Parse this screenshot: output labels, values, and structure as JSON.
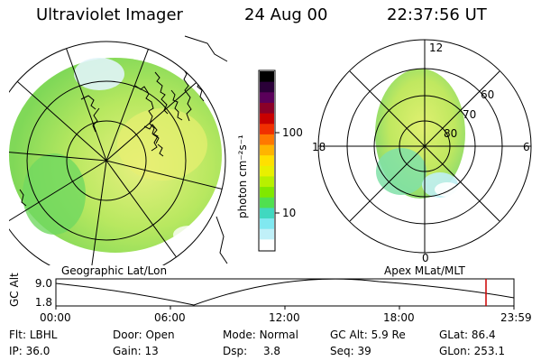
{
  "header": {
    "instrument": "Ultraviolet Imager",
    "date": "24 Aug 00",
    "time": "22:37:56 UT"
  },
  "colorbar": {
    "unit_label": "photon cm⁻²s⁻¹",
    "tick_labels": [
      "100",
      "10"
    ],
    "colors": [
      "#000000",
      "#2a0038",
      "#5a005a",
      "#8b0028",
      "#c80000",
      "#f03000",
      "#ff7800",
      "#ffb400",
      "#ffe000",
      "#e8f000",
      "#b8f000",
      "#80e800",
      "#50e050",
      "#40d8c0",
      "#80e8f0",
      "#c0f0f8",
      "#ffffff"
    ]
  },
  "left_map": {
    "label": "Geographic Lat/Lon"
  },
  "right_map": {
    "label": "Apex MLat/MLT",
    "mlt_labels": {
      "top": "12",
      "left": "18",
      "right": "6",
      "bottom": "0"
    },
    "lat_labels": [
      "60",
      "70",
      "80"
    ]
  },
  "timeline": {
    "ylabel": "GC Alt",
    "y_ticks": [
      "9.0",
      "1.8"
    ],
    "x_ticks": [
      "00:00",
      "06:00",
      "12:00",
      "18:00",
      "23:59"
    ],
    "marker_color": "#cc0000"
  },
  "info": {
    "row1": [
      {
        "label": "Flt:",
        "value": "LBHL"
      },
      {
        "label": "Door:",
        "value": "Open"
      },
      {
        "label": "Mode:",
        "value": "Normal"
      },
      {
        "label": "GC Alt:",
        "value": "5.9 Re"
      },
      {
        "label": "GLat:",
        "value": "86.4"
      }
    ],
    "row2": [
      {
        "label": "IP:",
        "value": "36.0"
      },
      {
        "label": "Gain:",
        "value": "13"
      },
      {
        "label": "Dsp:",
        "value": "3.8"
      },
      {
        "label": "Seq:",
        "value": "39"
      },
      {
        "label": "GLon:",
        "value": "253.1"
      }
    ]
  }
}
